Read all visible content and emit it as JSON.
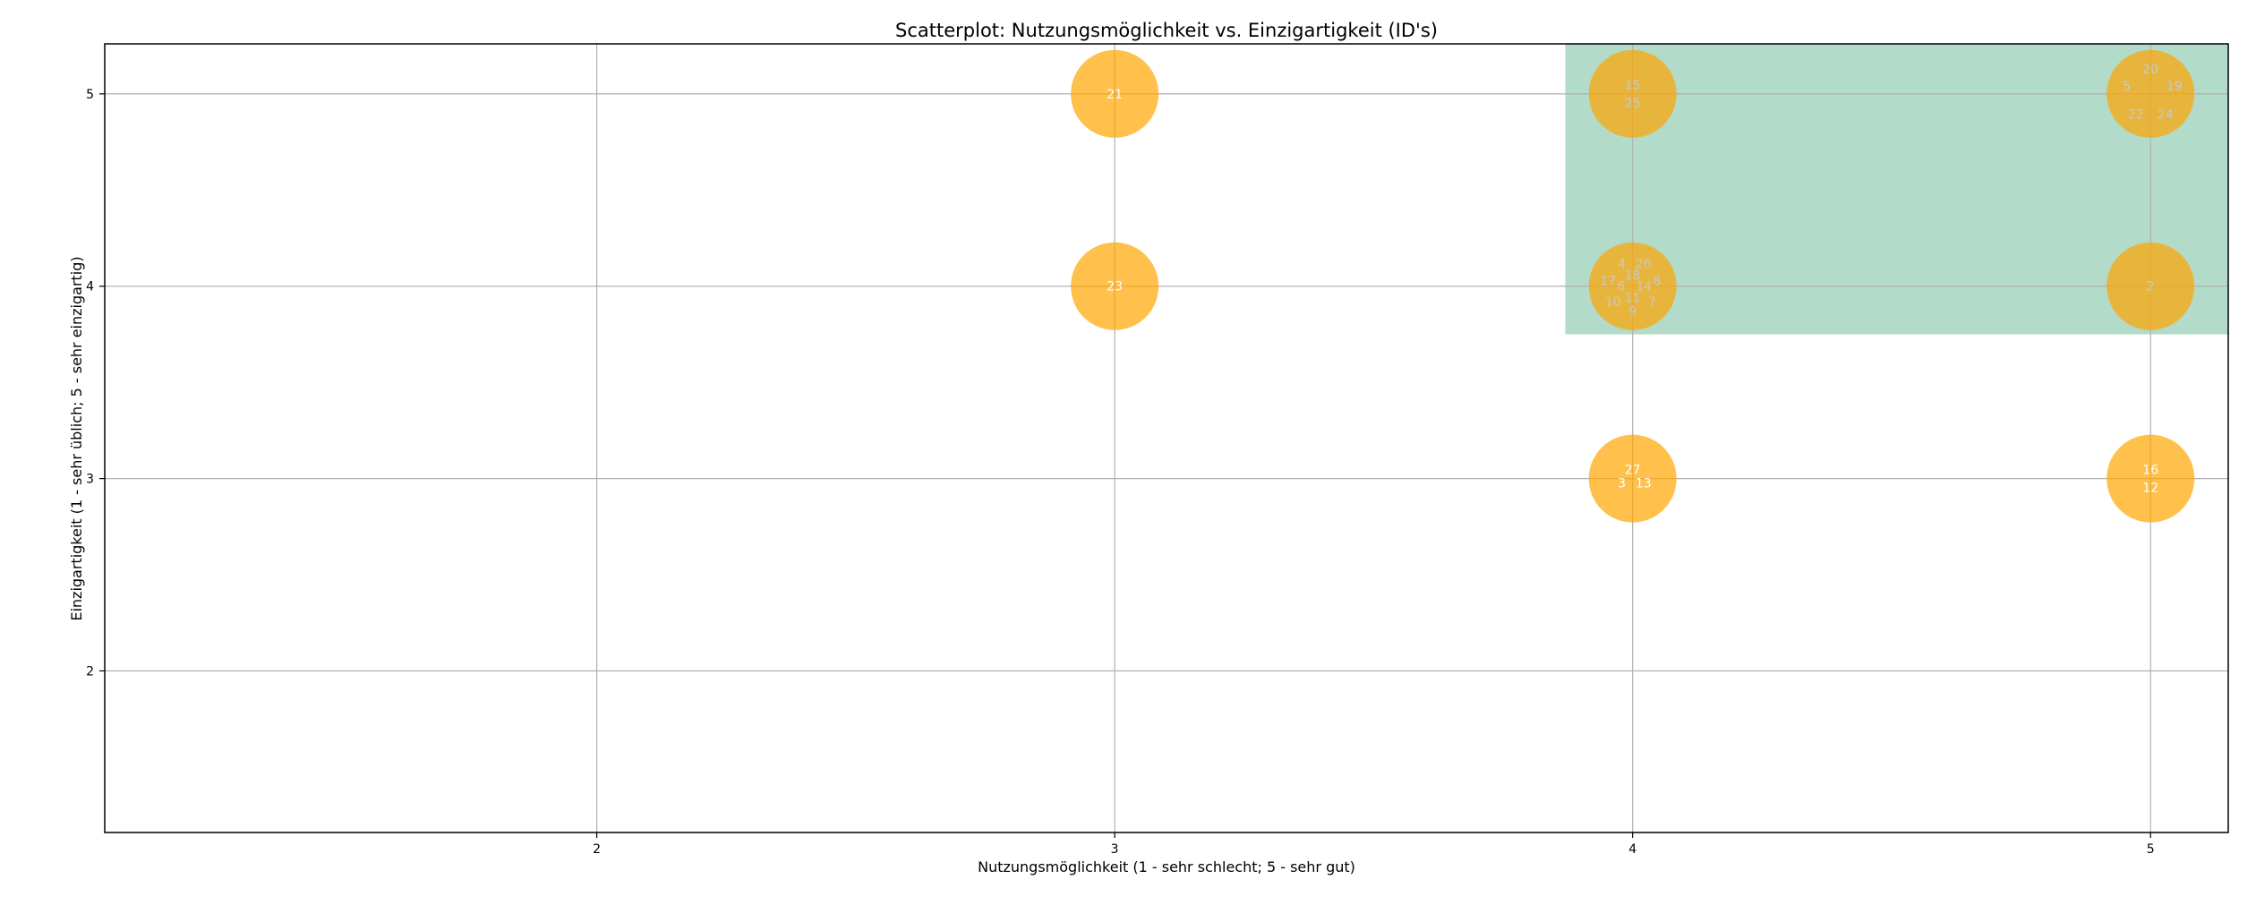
{
  "chart_data": {
    "type": "scatter",
    "title": "Scatterplot: Nutzungsmöglichkeit vs. Einzigartigkeit (ID's)",
    "xlabel": "Nutzungsmöglichkeit (1 - sehr schlecht; 5 - sehr gut)",
    "ylabel": "Einzigartigkeit (1 - sehr üblich; 5 - sehr einzigartig)",
    "xlim": [
      1.05,
      5.15
    ],
    "ylim": [
      1.16,
      5.26
    ],
    "xticks": [
      2,
      3,
      4,
      5
    ],
    "yticks": [
      2,
      3,
      4,
      5
    ],
    "grid": true,
    "highlight_region": {
      "x": [
        3.87,
        5.15
      ],
      "y": [
        3.75,
        5.26
      ],
      "color": "#b3dbc9"
    },
    "colors": {
      "marker": "#ffa500",
      "id_label_outside": "#ffffff",
      "id_label_inside": "#c8c8c8"
    },
    "points": [
      {
        "x": 3,
        "y": 5,
        "ids": [
          "21"
        ]
      },
      {
        "x": 3,
        "y": 4,
        "ids": [
          "23"
        ]
      },
      {
        "x": 4,
        "y": 5,
        "ids": [
          "15",
          "25"
        ]
      },
      {
        "x": 5,
        "y": 5,
        "ids": [
          "20",
          "19",
          "24",
          "22",
          "5"
        ]
      },
      {
        "x": 4,
        "y": 4,
        "ids": [
          "18",
          "14",
          "11",
          "6",
          "26",
          "8",
          "7",
          "9",
          "10",
          "17",
          "4"
        ]
      },
      {
        "x": 5,
        "y": 4,
        "ids": [
          "2"
        ]
      },
      {
        "x": 4,
        "y": 3,
        "ids": [
          "27",
          "13",
          "3"
        ]
      },
      {
        "x": 5,
        "y": 3,
        "ids": [
          "16",
          "12"
        ]
      }
    ]
  }
}
